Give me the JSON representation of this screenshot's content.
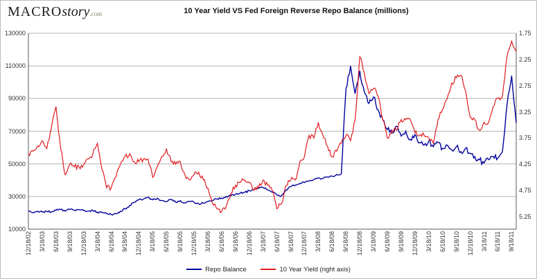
{
  "page": {
    "logo": {
      "macro": "MACRO",
      "story": "story",
      "com": ".com"
    },
    "title": "10 Year Yield VS Fed Foreign Reverse Repo Balance (millions)"
  },
  "chart_data": {
    "type": "line",
    "title": "10 Year Yield VS Fed Foreign Reverse Repo Balance (millions)",
    "grid": "horizontal",
    "legend_position": "bottom-center",
    "x_note": "weekly data from 12/18/02 to late 2011, sampled monthly below; x ticks every 3 months",
    "x_start": "2002-12",
    "x_end": "2011-10",
    "x_tick_labels": [
      "12/18/02",
      "3/18/03",
      "6/18/03",
      "9/18/03",
      "12/18/03",
      "3/18/04",
      "6/18/04",
      "9/18/04",
      "12/18/04",
      "3/18/05",
      "6/18/05",
      "9/18/05",
      "12/18/05",
      "3/18/06",
      "6/18/06",
      "9/18/06",
      "12/18/06",
      "3/18/07",
      "6/18/07",
      "9/18/07",
      "12/18/07",
      "3/18/08",
      "6/18/08",
      "9/18/08",
      "12/18/08",
      "3/18/09",
      "6/18/09",
      "9/18/09",
      "12/18/09",
      "3/18/10",
      "6/18/10",
      "9/18/10",
      "12/18/10",
      "3/18/11",
      "6/18/11",
      "9/18/11"
    ],
    "y_left": {
      "label": "Repo Balance (millions)",
      "ticks": [
        "10000",
        "30000",
        "50000",
        "70000",
        "90000",
        "110000",
        "130000"
      ],
      "lim": [
        10000,
        130000
      ]
    },
    "y_right": {
      "label": "10 Year Yield",
      "ticks": [
        "1.75",
        "2.25",
        "2.75",
        "3.25",
        "3.75",
        "4.25",
        "4.75",
        "5.25"
      ],
      "lim": [
        1.75,
        5.25
      ],
      "inverted": true
    },
    "series": [
      {
        "name": "Repo Balance",
        "axis": "left",
        "color": "#00009c",
        "values": [
          21000,
          20000,
          21000,
          20500,
          21000,
          20500,
          21500,
          22000,
          21000,
          22000,
          21500,
          22000,
          21500,
          21000,
          21500,
          20500,
          20000,
          19500,
          19000,
          19500,
          21000,
          22500,
          24500,
          26500,
          28000,
          28500,
          29500,
          28000,
          29000,
          27500,
          27000,
          28000,
          26500,
          27500,
          26000,
          27000,
          26500,
          25500,
          26000,
          27000,
          27500,
          28500,
          29000,
          30000,
          30500,
          31500,
          32000,
          32500,
          33500,
          34000,
          35000,
          35500,
          34000,
          32500,
          31000,
          30500,
          34000,
          36000,
          37000,
          38000,
          38500,
          39500,
          40500,
          41500,
          41000,
          42000,
          42500,
          43500,
          44000,
          96000,
          110000,
          93000,
          107000,
          94000,
          87000,
          91000,
          83000,
          77000,
          71000,
          69000,
          73000,
          67000,
          70000,
          65000,
          68000,
          63000,
          61500,
          64000,
          60500,
          63000,
          59500,
          61500,
          58500,
          60500,
          57500,
          59500,
          56500,
          54500,
          52500,
          50500,
          52500,
          54500,
          53500,
          57500,
          86000,
          104000,
          75000
        ]
      },
      {
        "name": "10 Year Yield (right axis)",
        "axis": "right",
        "color": "#e01b1f",
        "values": [
          4.05,
          4.0,
          3.9,
          3.8,
          3.95,
          3.55,
          3.15,
          3.95,
          4.45,
          4.25,
          4.3,
          4.3,
          4.25,
          4.15,
          4.05,
          3.85,
          4.35,
          4.7,
          4.7,
          4.5,
          4.25,
          4.1,
          4.05,
          4.2,
          4.2,
          4.15,
          4.15,
          4.5,
          4.3,
          4.1,
          3.95,
          4.2,
          4.25,
          4.2,
          4.45,
          4.55,
          4.45,
          4.4,
          4.55,
          4.7,
          5.0,
          5.1,
          5.15,
          5.05,
          4.8,
          4.65,
          4.6,
          4.55,
          4.6,
          4.75,
          4.7,
          4.55,
          4.65,
          4.75,
          5.1,
          5.0,
          4.65,
          4.55,
          4.55,
          4.2,
          4.1,
          3.7,
          3.75,
          3.45,
          3.7,
          3.9,
          4.1,
          4.0,
          3.85,
          3.7,
          3.8,
          3.4,
          2.2,
          2.5,
          2.9,
          2.8,
          2.95,
          3.4,
          3.75,
          3.6,
          3.6,
          3.4,
          3.4,
          3.4,
          3.65,
          3.7,
          3.7,
          3.75,
          3.85,
          3.4,
          3.2,
          3.0,
          2.7,
          2.6,
          2.55,
          2.85,
          3.35,
          3.4,
          3.6,
          3.45,
          3.45,
          3.15,
          3.0,
          2.95,
          2.2,
          1.9,
          2.1
        ]
      }
    ]
  }
}
